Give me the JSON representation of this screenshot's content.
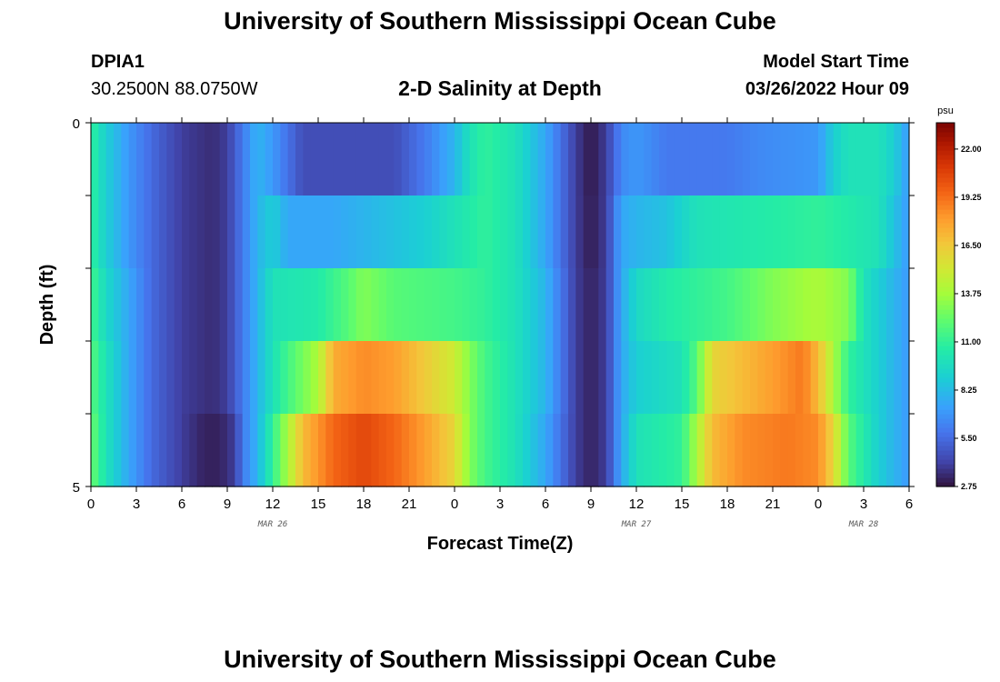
{
  "header": {
    "title": "University of Southern Mississippi Ocean Cube",
    "station_id": "DPIA1",
    "station_coords": "30.2500N  88.0750W",
    "chart_title": "2-D Salinity at Depth",
    "model_start_label": "Model Start Time",
    "model_start_value": "03/26/2022 Hour 09"
  },
  "footer": {
    "title": "University of Southern Mississippi Ocean Cube"
  },
  "chart_data": {
    "type": "heatmap",
    "title": "2-D Salinity at Depth",
    "xlabel": "Forecast Time(Z)",
    "ylabel": "Depth (ft)",
    "units": "psu",
    "x_hours_from_mar26_00": [
      0,
      3,
      6,
      9,
      12,
      15,
      18,
      21,
      24,
      27,
      30,
      33,
      36,
      39,
      42,
      45,
      48,
      51,
      54
    ],
    "x_tick_labels": [
      "0",
      "3",
      "6",
      "9",
      "12",
      "15",
      "18",
      "21",
      "0",
      "3",
      "6",
      "9",
      "12",
      "15",
      "18",
      "21",
      "0",
      "3",
      "6"
    ],
    "date_labels": [
      {
        "label": "MAR 26",
        "hour": 12
      },
      {
        "label": "MAR 27",
        "hour": 36
      },
      {
        "label": "MAR 28",
        "hour": 51
      }
    ],
    "y_range": [
      0,
      5
    ],
    "y_tick_labels": [
      "0",
      "5"
    ],
    "color_range": [
      2.75,
      23.5
    ],
    "colorbar_ticks": [
      2.75,
      5.5,
      8.25,
      11.0,
      13.75,
      16.5,
      19.25,
      22.0
    ],
    "colorbar_tick_labels": [
      "2.75",
      "5.50",
      "8.25",
      "11.00",
      "13.75",
      "16.50",
      "19.25",
      "22.00"
    ],
    "depth_rows": [
      {
        "depth_ft": 0.5,
        "knots": [
          [
            0,
            11
          ],
          [
            1,
            9
          ],
          [
            2.5,
            7
          ],
          [
            4,
            5.5
          ],
          [
            6,
            4
          ],
          [
            8,
            3.5
          ],
          [
            9,
            4
          ],
          [
            10,
            6
          ],
          [
            11,
            8
          ],
          [
            12,
            7
          ],
          [
            14,
            4.5
          ],
          [
            18,
            4.5
          ],
          [
            20,
            4.5
          ],
          [
            22,
            6
          ],
          [
            24,
            8
          ],
          [
            25,
            10
          ],
          [
            26,
            11
          ],
          [
            28,
            10
          ],
          [
            30,
            7.5
          ],
          [
            32,
            4
          ],
          [
            33,
            2.9
          ],
          [
            34,
            4
          ],
          [
            35,
            6.5
          ],
          [
            36,
            7
          ],
          [
            38,
            6
          ],
          [
            42,
            6
          ],
          [
            44,
            6.5
          ],
          [
            48,
            7
          ],
          [
            49,
            9
          ],
          [
            50,
            10
          ],
          [
            52,
            10
          ],
          [
            53,
            9
          ],
          [
            54,
            7
          ]
        ]
      },
      {
        "depth_ft": 1.5,
        "knots": [
          [
            0,
            11
          ],
          [
            1,
            9
          ],
          [
            2.5,
            7
          ],
          [
            4,
            5.5
          ],
          [
            6,
            4
          ],
          [
            8,
            3.5
          ],
          [
            9,
            4
          ],
          [
            10,
            6
          ],
          [
            11,
            8
          ],
          [
            12,
            9
          ],
          [
            13,
            7.5
          ],
          [
            16,
            7.5
          ],
          [
            20,
            8.5
          ],
          [
            22,
            9
          ],
          [
            24,
            10
          ],
          [
            26,
            11
          ],
          [
            28,
            10
          ],
          [
            30,
            7.5
          ],
          [
            32,
            4
          ],
          [
            33,
            3
          ],
          [
            34,
            4
          ],
          [
            35,
            7.5
          ],
          [
            36,
            8
          ],
          [
            38,
            8.5
          ],
          [
            40,
            10
          ],
          [
            44,
            10.5
          ],
          [
            48,
            11
          ],
          [
            50,
            10.5
          ],
          [
            52,
            10
          ],
          [
            54,
            7
          ]
        ]
      },
      {
        "depth_ft": 2.5,
        "knots": [
          [
            0,
            11.5
          ],
          [
            1,
            9.5
          ],
          [
            2.5,
            7.5
          ],
          [
            4,
            5.5
          ],
          [
            6,
            4
          ],
          [
            8,
            3.5
          ],
          [
            9,
            4
          ],
          [
            10,
            6
          ],
          [
            11,
            8
          ],
          [
            12,
            10
          ],
          [
            15,
            10.5
          ],
          [
            17,
            12
          ],
          [
            18,
            13
          ],
          [
            20,
            12
          ],
          [
            24,
            11.5
          ],
          [
            26,
            11
          ],
          [
            28,
            10
          ],
          [
            30,
            8
          ],
          [
            32,
            4
          ],
          [
            33,
            3.2
          ],
          [
            34,
            4
          ],
          [
            35,
            7.5
          ],
          [
            36,
            9.5
          ],
          [
            38,
            10.5
          ],
          [
            42,
            11.5
          ],
          [
            45,
            13
          ],
          [
            48,
            14
          ],
          [
            50,
            13
          ],
          [
            51,
            10
          ],
          [
            52,
            9
          ],
          [
            54,
            7
          ]
        ]
      },
      {
        "depth_ft": 3.5,
        "knots": [
          [
            0,
            12
          ],
          [
            1,
            10
          ],
          [
            2.5,
            7.5
          ],
          [
            4,
            5.5
          ],
          [
            6,
            4
          ],
          [
            8,
            3.5
          ],
          [
            9,
            4
          ],
          [
            10,
            6
          ],
          [
            11,
            8
          ],
          [
            12,
            10
          ],
          [
            13,
            11.5
          ],
          [
            15,
            14
          ],
          [
            16,
            17.5
          ],
          [
            18,
            18.5
          ],
          [
            20,
            18
          ],
          [
            22,
            16.5
          ],
          [
            24,
            15
          ],
          [
            25,
            13
          ],
          [
            26,
            11.5
          ],
          [
            28,
            10
          ],
          [
            30,
            8
          ],
          [
            32,
            4
          ],
          [
            33,
            3.2
          ],
          [
            34,
            4
          ],
          [
            35,
            7.5
          ],
          [
            36,
            9
          ],
          [
            39,
            10
          ],
          [
            40,
            12
          ],
          [
            41,
            16
          ],
          [
            43,
            17
          ],
          [
            45,
            18
          ],
          [
            47,
            19
          ],
          [
            48,
            17
          ],
          [
            49,
            14
          ],
          [
            50,
            11
          ],
          [
            52,
            9
          ],
          [
            54,
            7
          ]
        ]
      },
      {
        "depth_ft": 4.5,
        "knots": [
          [
            0,
            12.5
          ],
          [
            1,
            10
          ],
          [
            2.5,
            7.5
          ],
          [
            4,
            5.5
          ],
          [
            6,
            4
          ],
          [
            7.5,
            3.2
          ],
          [
            8.5,
            3.2
          ],
          [
            9.5,
            4
          ],
          [
            10,
            6
          ],
          [
            11,
            8
          ],
          [
            12,
            11
          ],
          [
            13,
            14
          ],
          [
            14,
            17
          ],
          [
            16,
            19.5
          ],
          [
            18,
            20.5
          ],
          [
            20,
            19.5
          ],
          [
            22,
            18
          ],
          [
            24,
            16
          ],
          [
            25,
            13
          ],
          [
            26,
            11.5
          ],
          [
            28,
            10
          ],
          [
            30,
            7.5
          ],
          [
            32,
            4
          ],
          [
            33,
            3.2
          ],
          [
            34,
            4
          ],
          [
            35,
            7.5
          ],
          [
            36,
            10
          ],
          [
            39,
            11
          ],
          [
            40,
            14
          ],
          [
            41,
            17
          ],
          [
            43,
            18.5
          ],
          [
            46,
            19
          ],
          [
            48,
            18.5
          ],
          [
            49,
            16
          ],
          [
            50,
            12
          ],
          [
            52,
            9
          ],
          [
            54,
            7
          ]
        ]
      },
      {
        "depth_ft": 4.9,
        "knots": [
          [
            0,
            13
          ],
          [
            1,
            10
          ],
          [
            2.5,
            7.5
          ],
          [
            4,
            5.5
          ],
          [
            6,
            4
          ],
          [
            8,
            3.5
          ],
          [
            9,
            4
          ],
          [
            10,
            6
          ],
          [
            11,
            8.5
          ],
          [
            12,
            11
          ],
          [
            13,
            15
          ],
          [
            14,
            18
          ],
          [
            16,
            21
          ],
          [
            18,
            23
          ],
          [
            20,
            21.5
          ],
          [
            22,
            19
          ],
          [
            24,
            17
          ],
          [
            25,
            14
          ],
          [
            26,
            12
          ],
          [
            28,
            10
          ],
          [
            30,
            7.5
          ],
          [
            32,
            4
          ],
          [
            33,
            3.2
          ],
          [
            34,
            4
          ],
          [
            35,
            9
          ],
          [
            36,
            11
          ],
          [
            38,
            12.5
          ],
          [
            40,
            15
          ],
          [
            41,
            17.5
          ],
          [
            43,
            19
          ],
          [
            46,
            20
          ],
          [
            48,
            19
          ],
          [
            49,
            16
          ],
          [
            50,
            13
          ],
          [
            52,
            9
          ],
          [
            54,
            7
          ]
        ]
      }
    ]
  }
}
